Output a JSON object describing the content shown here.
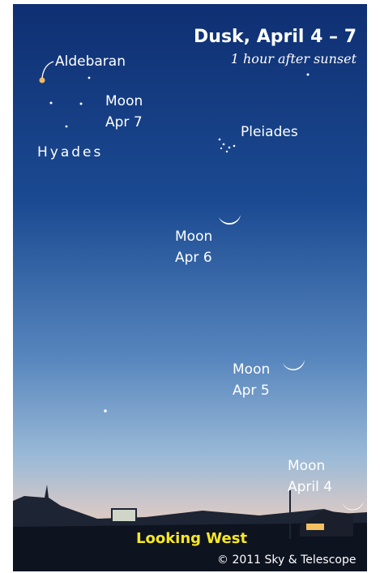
{
  "header": {
    "title": "Dusk, April 4 – 7",
    "subtitle": "1 hour after sunset"
  },
  "stars": {
    "aldebaran": "Aldebaran",
    "hyades": "Hyades",
    "pleiades": "Pleiades"
  },
  "moons": [
    {
      "label": "Moon",
      "date": "Apr 7"
    },
    {
      "label": "Moon",
      "date": "Apr 6"
    },
    {
      "label": "Moon",
      "date": "Apr 5"
    },
    {
      "label": "Moon",
      "date": "April 4"
    }
  ],
  "footer": {
    "direction": "Looking West",
    "credit": "© 2011 Sky & Telescope"
  }
}
